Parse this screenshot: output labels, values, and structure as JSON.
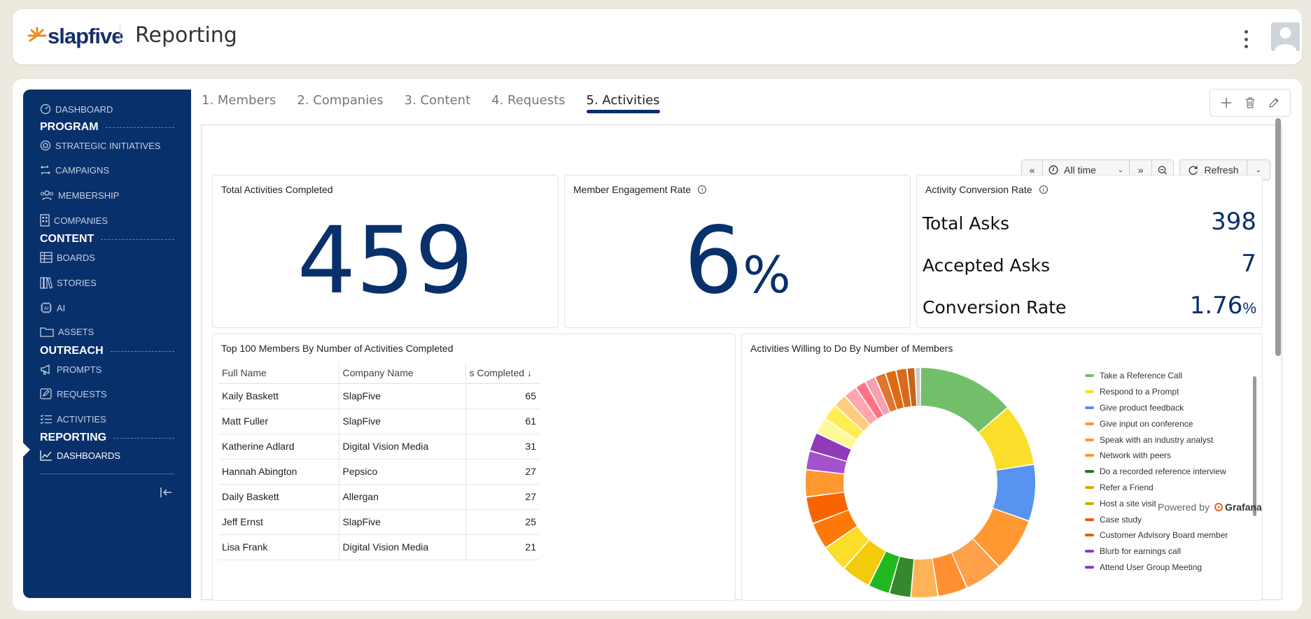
{
  "header": {
    "logo_text": "slapfive",
    "title": "Reporting"
  },
  "sidebar": {
    "items": [
      {
        "label": "DASHBOARD",
        "icon": "dashboard-icon"
      },
      {
        "section": "PROGRAM"
      },
      {
        "label": "STRATEGIC INITIATIVES",
        "icon": "target-icon"
      },
      {
        "label": "CAMPAIGNS",
        "icon": "campaign-icon"
      },
      {
        "label": "MEMBERSHIP",
        "icon": "people-icon"
      },
      {
        "label": "COMPANIES",
        "icon": "building-icon"
      },
      {
        "section": "CONTENT"
      },
      {
        "label": "BOARDS",
        "icon": "table-icon"
      },
      {
        "label": "STORIES",
        "icon": "books-icon"
      },
      {
        "label": "AI",
        "icon": "ai-chip-icon"
      },
      {
        "label": "ASSETS",
        "icon": "folder-icon"
      },
      {
        "section": "OUTREACH"
      },
      {
        "label": "PROMPTS",
        "icon": "megaphone-icon"
      },
      {
        "label": "REQUESTS",
        "icon": "edit-icon"
      },
      {
        "label": "ACTIVITIES",
        "icon": "checklist-icon"
      },
      {
        "section": "REPORTING"
      },
      {
        "label": "DASHBOARDS",
        "icon": "line-chart-icon"
      }
    ]
  },
  "tabs": [
    "1. Members",
    "2. Companies",
    "3. Content",
    "4. Requests",
    "5. Activities"
  ],
  "active_tab": "5. Activities",
  "controls": {
    "time_range": "All time",
    "refresh": "Refresh"
  },
  "panels": {
    "total_activities": {
      "title": "Total Activities Completed",
      "value": "459"
    },
    "engagement": {
      "title": "Member Engagement Rate",
      "value": "6",
      "unit": "%"
    },
    "conversion": {
      "title": "Activity Conversion Rate",
      "rows": [
        {
          "label": "Total Asks",
          "value": "398",
          "unit": ""
        },
        {
          "label": "Accepted Asks",
          "value": "7",
          "unit": ""
        },
        {
          "label": "Conversion Rate",
          "value": "1.76",
          "unit": "%"
        }
      ]
    },
    "top_members": {
      "title": "Top 100 Members By Number of Activities Completed",
      "columns": [
        "Full Name",
        "Company Name",
        "s Completed ↓"
      ],
      "rows": [
        [
          "Kaily Baskett",
          "SlapFive",
          "65"
        ],
        [
          "Matt Fuller",
          "SlapFive",
          "61"
        ],
        [
          "Katherine Adlard",
          "Digital Vision Media",
          "31"
        ],
        [
          "Hannah Abington",
          "Pepsico",
          "27"
        ],
        [
          "Daily Baskett",
          "Allergan",
          "27"
        ],
        [
          "Jeff Ernst",
          "SlapFive",
          "25"
        ],
        [
          "Lisa Frank",
          "Digital Vision Media",
          "21"
        ]
      ]
    },
    "willing": {
      "title": "Activities Willing to Do By Number of Members"
    }
  },
  "chart_data": {
    "type": "pie",
    "title": "Activities Willing to Do By Number of Members",
    "categories": [
      "Take a Reference Call",
      "Respond to a Prompt",
      "Give product feedback",
      "Give input on conference",
      "Speak with an industry analyst",
      "Network with peers",
      "Do a recorded reference interview",
      "Refer a Friend",
      "Host a site visit",
      "Case study",
      "Customer Advisory Board member",
      "Blurb for earnings call",
      "Attend User Group Meeting"
    ],
    "colors": [
      "#73bf69",
      "#fade2a",
      "#5794f2",
      "#ff9830",
      "#ff9830",
      "#ff9830",
      "#1e7a1e",
      "#e0a800",
      "#c9b200",
      "#e55a0c",
      "#e06010",
      "#8f3bb8",
      "#8f3bb8"
    ],
    "slices": [
      {
        "color": "#73bf69",
        "value": 36
      },
      {
        "color": "#fade2a",
        "value": 23
      },
      {
        "color": "#5794f2",
        "value": 21
      },
      {
        "color": "#ff9830",
        "value": 20
      },
      {
        "color": "#ffa04a",
        "value": 14
      },
      {
        "color": "#ff8f30",
        "value": 11
      },
      {
        "color": "#ffb357",
        "value": 10
      },
      {
        "color": "#37872d",
        "value": 8
      },
      {
        "color": "#1fb81f",
        "value": 8
      },
      {
        "color": "#f2cc0c",
        "value": 11
      },
      {
        "color": "#fade2a",
        "value": 10
      },
      {
        "color": "#ff780a",
        "value": 10
      },
      {
        "color": "#fa6400",
        "value": 10
      },
      {
        "color": "#ff9830",
        "value": 10
      },
      {
        "color": "#a352cc",
        "value": 7
      },
      {
        "color": "#8f3bb8",
        "value": 7
      },
      {
        "color": "#fff899",
        "value": 6
      },
      {
        "color": "#ffee52",
        "value": 6
      },
      {
        "color": "#ffcb7d",
        "value": 5
      },
      {
        "color": "#ffa6b0",
        "value": 5
      },
      {
        "color": "#ff7383",
        "value": 4
      },
      {
        "color": "#f7a0b0",
        "value": 4
      },
      {
        "color": "#e0752d",
        "value": 4
      },
      {
        "color": "#e06a10",
        "value": 4
      },
      {
        "color": "#d86a1a",
        "value": 4
      },
      {
        "color": "#c4651a",
        "value": 3
      },
      {
        "color": "#cccccc",
        "value": 2
      }
    ]
  },
  "footer": {
    "powered_by": "Powered by",
    "brand": "Grafana"
  }
}
